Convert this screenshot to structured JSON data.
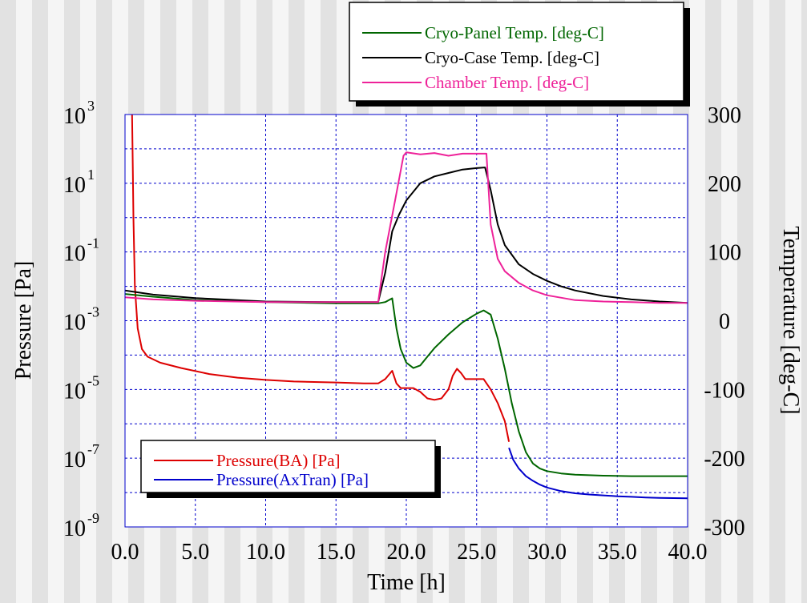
{
  "chart_data": {
    "type": "line",
    "title": "",
    "xlabel": "Time [h]",
    "ylabel_left": "Pressure [Pa]",
    "ylabel_right": "Temperature [deg-C]",
    "xlim": [
      0,
      40
    ],
    "ylim_left_log10": [
      -9,
      3
    ],
    "ylim_right": [
      -300,
      300
    ],
    "y_left_scale": "log",
    "grid": true,
    "x_ticks": [
      "0.0",
      "5.0",
      "10.0",
      "15.0",
      "20.0",
      "25.0",
      "30.0",
      "35.0",
      "40.0"
    ],
    "y_left_ticks": [
      {
        "base": "10",
        "exp": "3"
      },
      {
        "base": "10",
        "exp": "1"
      },
      {
        "base": "10",
        "exp": "-1"
      },
      {
        "base": "10",
        "exp": "-3"
      },
      {
        "base": "10",
        "exp": "-5"
      },
      {
        "base": "10",
        "exp": "-7"
      },
      {
        "base": "10",
        "exp": "-9"
      }
    ],
    "y_right_ticks": [
      "300",
      "200",
      "100",
      "0",
      "-100",
      "-200",
      "-300"
    ],
    "legends": [
      {
        "placement": "top-right",
        "entries": [
          "Cryo-Panel Temp. [deg-C]",
          "Cryo-Case Temp. [deg-C]",
          "Chamber Temp. [deg-C]"
        ]
      },
      {
        "placement": "bottom-left",
        "entries": [
          "Pressure(BA) [Pa]",
          "Pressure(AxTran) [Pa]"
        ]
      }
    ],
    "series": [
      {
        "name": "Pressure(BA) [Pa]",
        "axis": "left",
        "color": "#dd0000",
        "x": [
          0.5,
          0.55,
          0.6,
          0.7,
          0.9,
          1.2,
          1.6,
          2.5,
          4,
          6,
          8,
          10,
          12,
          15,
          17,
          18,
          18.5,
          19.0,
          19.3,
          19.6,
          20.0,
          20.5,
          21.0,
          21.5,
          22.0,
          22.5,
          23.0,
          23.3,
          23.6,
          23.9,
          24.2,
          24.6,
          25.0,
          25.5,
          26.0,
          26.5,
          27.0,
          27.3
        ],
        "y": [
          1000,
          30,
          1,
          0.01,
          0.0006,
          0.00015,
          9e-05,
          6e-05,
          4.2e-05,
          2.8e-05,
          2.2e-05,
          1.9e-05,
          1.7e-05,
          1.6e-05,
          1.5e-05,
          1.5e-05,
          2e-05,
          3.5e-05,
          1.5e-05,
          1.1e-05,
          1.1e-05,
          1.1e-05,
          8.5e-06,
          5.5e-06,
          5e-06,
          5.5e-06,
          1e-05,
          2.5e-05,
          4e-05,
          3e-05,
          2e-05,
          2e-05,
          2e-05,
          2e-05,
          1e-05,
          4e-06,
          1.2e-06,
          3e-07
        ]
      },
      {
        "name": "Pressure(AxTran) [Pa]",
        "axis": "left",
        "color": "#0000cc",
        "x": [
          27.3,
          27.6,
          28.0,
          28.5,
          29.0,
          29.5,
          30.0,
          31.0,
          32.0,
          33.0,
          34.0,
          35.0,
          36.0,
          37.0,
          38.0,
          39.0,
          40.0
        ],
        "y": [
          2e-07,
          9e-08,
          5e-08,
          3e-08,
          2.2e-08,
          1.7e-08,
          1.4e-08,
          1.1e-08,
          9.5e-09,
          8.8e-09,
          8.3e-09,
          7.8e-09,
          7.5e-09,
          7.2e-09,
          7e-09,
          6.9e-09,
          6.8e-09
        ]
      },
      {
        "name": "Cryo-Panel Temp. [deg-C]",
        "axis": "left",
        "color": "#006600",
        "x": [
          0,
          2,
          5,
          10,
          15,
          18,
          18.5,
          19.0,
          19.3,
          19.6,
          20.0,
          20.5,
          21.0,
          21.5,
          22.0,
          23.0,
          24.0,
          25.0,
          25.5,
          26.0,
          26.5,
          27.0,
          27.5,
          28.0,
          28.5,
          29.0,
          29.5,
          30.0,
          31.0,
          32.0,
          34.0,
          36.0,
          40.0
        ],
        "y": [
          0.006,
          0.005,
          0.004,
          0.0035,
          0.0032,
          0.0032,
          0.0035,
          0.0045,
          0.0006,
          0.00015,
          6e-05,
          4.2e-05,
          5e-05,
          9e-05,
          0.00016,
          0.0004,
          0.0009,
          0.0016,
          0.002,
          0.0015,
          0.0003,
          4e-05,
          4e-06,
          6e-07,
          1.5e-07,
          7e-08,
          5e-08,
          4.2e-08,
          3.6e-08,
          3.3e-08,
          3.1e-08,
          3e-08,
          3e-08
        ]
      },
      {
        "name": "Cryo-Case Temp. [deg-C]",
        "axis": "right",
        "color": "#000000",
        "x": [
          0,
          2,
          5,
          10,
          15,
          18,
          18.5,
          19.0,
          19.5,
          20.0,
          21.0,
          22.0,
          23.0,
          24.0,
          25.0,
          25.6,
          26.0,
          26.5,
          27.0,
          28.0,
          29.0,
          30.0,
          31.0,
          32.0,
          34.0,
          36.0,
          38.0,
          40.0
        ],
        "y": [
          44,
          38,
          33,
          28,
          27,
          27,
          70,
          130,
          155,
          175,
          200,
          210,
          215,
          220,
          222,
          223,
          190,
          140,
          110,
          82,
          68,
          58,
          50,
          44,
          36,
          31,
          28,
          26
        ]
      },
      {
        "name": "Chamber Temp. [deg-C]",
        "axis": "right",
        "color": "#ee2299",
        "x": [
          0,
          2,
          5,
          10,
          15,
          18,
          18.5,
          19.2,
          19.8,
          20.0,
          21.0,
          22.0,
          23.0,
          24.0,
          25.0,
          25.7,
          26.0,
          26.5,
          27.0,
          28.0,
          29.0,
          30.0,
          32.0,
          34.0,
          36.0,
          38.0,
          40.0
        ],
        "y": [
          34,
          31,
          29,
          27,
          27,
          27,
          100,
          175,
          240,
          245,
          242,
          244,
          240,
          243,
          243,
          243,
          140,
          90,
          72,
          55,
          44,
          37,
          30,
          28,
          27,
          26,
          26
        ]
      }
    ]
  }
}
